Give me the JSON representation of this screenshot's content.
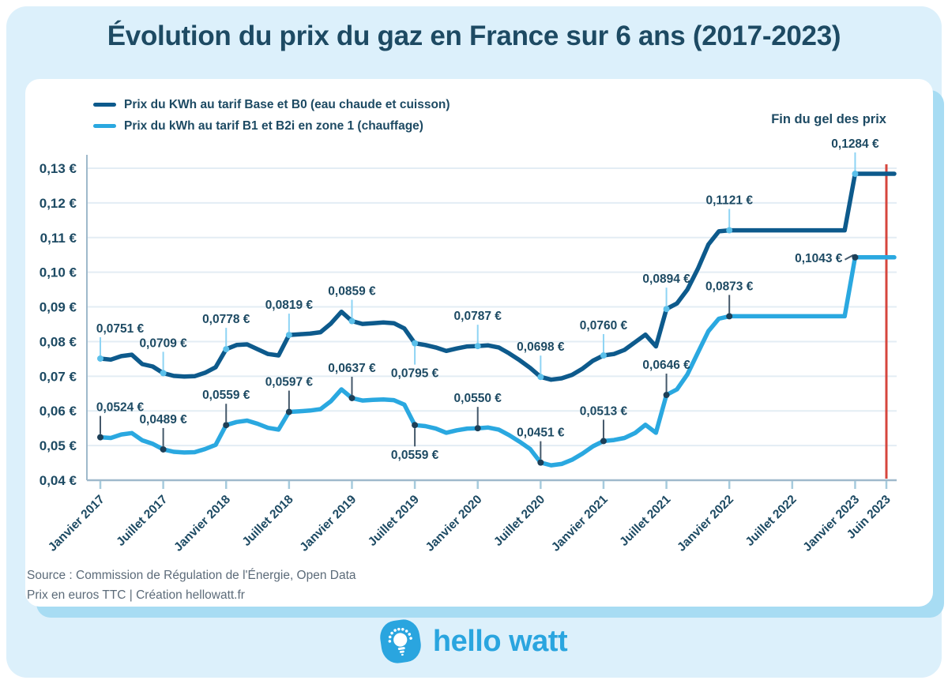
{
  "title": "Évolution du prix du gaz en France sur 6 ans (2017-2023)",
  "freeze_label": "Fin du gel des prix",
  "source": {
    "line1": "Source : Commission de Régulation de l'Énergie, Open Data",
    "line2": "Prix en euros TTC | Création hellowatt.fr"
  },
  "logo": {
    "text": "hello watt"
  },
  "colors": {
    "page_bg": "#ffffff",
    "panel_bg": "#dcf0fb",
    "card_bg": "#ffffff",
    "card_shadow": "#a7dcf3",
    "navy_text": "#1d4a63",
    "base_line": "#0d5a8c",
    "b1_line": "#2aa8e0",
    "freeze_line": "#d6463d",
    "grid": "#e3edf4",
    "axis": "#9fb9cb",
    "tick": "#a6cbdd",
    "leader_on_base": "#8ed4f4",
    "leader_on_b1": "#44586a",
    "marker_on_base": "#5bc0ea",
    "marker_on_b1": "#1d3f57",
    "source_text": "#5c6b79",
    "logo_blue": "#2aa5df"
  },
  "chart_data": {
    "type": "line",
    "title": "Évolution du prix du gaz en France sur 6 ans (2017-2023)",
    "x_unit": "months from Janvier 2017 to Juin 2023",
    "ylim": [
      0.04,
      0.13
    ],
    "grid": true,
    "legend_position": "top-left",
    "y_tick_labels": [
      "0,04 €",
      "0,05 €",
      "0,06 €",
      "0,07 €",
      "0,08 €",
      "0,09 €",
      "0,10 €",
      "0,11 €",
      "0,12 €",
      "0,13 €"
    ],
    "x_tick_labels": [
      "Janvier 2017",
      "Juillet 2017",
      "Janvier 2018",
      "Juillet 2018",
      "Janvier 2019",
      "Juillet 2019",
      "Janvier 2020",
      "Juillet 2020",
      "Janvier 2021",
      "Juillet 2021",
      "Janvier 2022",
      "Juillet 2022",
      "Janvier 2023",
      "Juin 2023"
    ],
    "x_tick_months": [
      0,
      6,
      12,
      18,
      24,
      30,
      36,
      42,
      48,
      54,
      60,
      66,
      72,
      77
    ],
    "freeze_line": {
      "month": 77,
      "label": "Fin du gel des prix"
    },
    "series": [
      {
        "name": "Prix du KWh au tarif Base et B0 (eau chaude et cuisson)",
        "color": "#0d5a8c",
        "values": [
          0.0751,
          0.0748,
          0.0758,
          0.0762,
          0.0735,
          0.0728,
          0.0709,
          0.0701,
          0.0699,
          0.07,
          0.071,
          0.0726,
          0.0778,
          0.079,
          0.0792,
          0.0778,
          0.0764,
          0.076,
          0.0819,
          0.0821,
          0.0823,
          0.0827,
          0.0852,
          0.0886,
          0.0859,
          0.0851,
          0.0853,
          0.0855,
          0.0853,
          0.0838,
          0.0795,
          0.079,
          0.0783,
          0.0773,
          0.078,
          0.0786,
          0.0787,
          0.0789,
          0.0783,
          0.0766,
          0.0746,
          0.0724,
          0.0698,
          0.069,
          0.0694,
          0.0704,
          0.0722,
          0.0745,
          0.076,
          0.0764,
          0.0776,
          0.0798,
          0.082,
          0.0786,
          0.0894,
          0.091,
          0.095,
          0.101,
          0.108,
          0.1118,
          0.1121,
          0.1121,
          0.1121,
          0.1121,
          0.1121,
          0.1121,
          0.1121,
          0.1121,
          0.1121,
          0.1121,
          0.1121,
          0.1121,
          0.1284,
          0.1284,
          0.1284,
          0.1284,
          0.1284,
          0.1284
        ]
      },
      {
        "name": "Prix du kWh au tarif B1 et B2i en zone 1 (chauffage)",
        "color": "#2aa8e0",
        "values": [
          0.0524,
          0.0522,
          0.0532,
          0.0536,
          0.0515,
          0.0505,
          0.0489,
          0.0482,
          0.048,
          0.0481,
          0.049,
          0.0502,
          0.0559,
          0.0568,
          0.0572,
          0.0563,
          0.0551,
          0.0546,
          0.0597,
          0.0599,
          0.0601,
          0.0605,
          0.0628,
          0.0662,
          0.0637,
          0.063,
          0.0632,
          0.0633,
          0.0631,
          0.0618,
          0.0559,
          0.0556,
          0.0549,
          0.0537,
          0.0544,
          0.0549,
          0.055,
          0.0552,
          0.0546,
          0.053,
          0.0511,
          0.049,
          0.0451,
          0.0443,
          0.0447,
          0.0459,
          0.0477,
          0.0498,
          0.0513,
          0.0516,
          0.0522,
          0.0536,
          0.056,
          0.0537,
          0.0646,
          0.0662,
          0.0705,
          0.0768,
          0.083,
          0.0866,
          0.0873,
          0.0873,
          0.0873,
          0.0873,
          0.0873,
          0.0873,
          0.0873,
          0.0873,
          0.0873,
          0.0873,
          0.0873,
          0.0873,
          0.1043,
          0.1043,
          0.1043,
          0.1043,
          0.1043,
          0.1043
        ]
      }
    ],
    "annotations": [
      {
        "series": 0,
        "month": 0,
        "text": "0,0751 €",
        "dir": "up"
      },
      {
        "series": 0,
        "month": 6,
        "text": "0,0709 €",
        "dir": "up"
      },
      {
        "series": 0,
        "month": 12,
        "text": "0,0778 €",
        "dir": "up"
      },
      {
        "series": 0,
        "month": 18,
        "text": "0,0819 €",
        "dir": "up"
      },
      {
        "series": 0,
        "month": 24,
        "text": "0,0859 €",
        "dir": "up"
      },
      {
        "series": 0,
        "month": 30,
        "text": "0,0795 €",
        "dir": "down"
      },
      {
        "series": 0,
        "month": 36,
        "text": "0,0787 €",
        "dir": "up"
      },
      {
        "series": 0,
        "month": 42,
        "text": "0,0698 €",
        "dir": "up"
      },
      {
        "series": 0,
        "month": 48,
        "text": "0,0760 €",
        "dir": "up"
      },
      {
        "series": 0,
        "month": 54,
        "text": "0,0894 €",
        "dir": "up"
      },
      {
        "series": 0,
        "month": 60,
        "text": "0,1121 €",
        "dir": "up"
      },
      {
        "series": 0,
        "month": 72,
        "text": "0,1284 €",
        "dir": "up"
      },
      {
        "series": 1,
        "month": 0,
        "text": "0,0524 €",
        "dir": "up"
      },
      {
        "series": 1,
        "month": 6,
        "text": "0,0489 €",
        "dir": "up"
      },
      {
        "series": 1,
        "month": 12,
        "text": "0,0559 €",
        "dir": "up"
      },
      {
        "series": 1,
        "month": 18,
        "text": "0,0597 €",
        "dir": "up"
      },
      {
        "series": 1,
        "month": 24,
        "text": "0,0637 €",
        "dir": "up"
      },
      {
        "series": 1,
        "month": 30,
        "text": "0,0559 €",
        "dir": "down"
      },
      {
        "series": 1,
        "month": 36,
        "text": "0,0550 €",
        "dir": "up"
      },
      {
        "series": 1,
        "month": 42,
        "text": "0,0451 €",
        "dir": "up"
      },
      {
        "series": 1,
        "month": 48,
        "text": "0,0513 €",
        "dir": "up"
      },
      {
        "series": 1,
        "month": 54,
        "text": "0,0646 €",
        "dir": "up"
      },
      {
        "series": 1,
        "month": 60,
        "text": "0,0873 €",
        "dir": "up"
      },
      {
        "series": 1,
        "month": 72,
        "text": "0,1043 €",
        "dir": "left"
      }
    ]
  }
}
